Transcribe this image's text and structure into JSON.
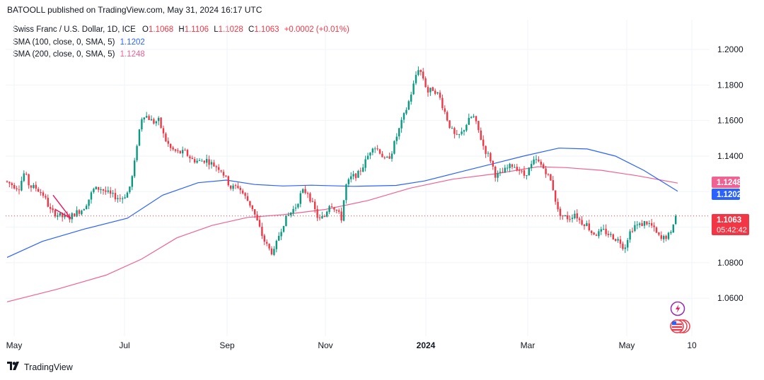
{
  "publisher": "BATOOLL published on TradingView.com, May 31, 2024 16:17 UTC",
  "legend": {
    "symbol": "Swiss Franc / U.S. Dollar, 1D, ICE",
    "o_label": "O",
    "o": "1.1068",
    "h_label": "H",
    "h": "1.1106",
    "l_label": "L",
    "l": "1.1028",
    "c_label": "C",
    "c": "1.1063",
    "change": "+0.0002 (+0.01%)",
    "sma100_label": "SMA (100, close, 0, SMA, 5)",
    "sma100_value": "1.1202",
    "sma200_label": "SMA (200, close, 0, SMA, 5)",
    "sma200_value": "1.1248"
  },
  "badges": {
    "sma200": "1.1248",
    "sma100": "1.1202",
    "price": "1.1063",
    "countdown": "05:42:42"
  },
  "footer": {
    "brand": "TradingView"
  },
  "colors": {
    "up": "#089981",
    "down": "#f23645",
    "sma100": "#2962ff",
    "sma200": "#f06292",
    "price_badge": "#f23645",
    "grid": "#f0f3fa",
    "pattern": "#e91e63"
  },
  "chart_data": {
    "type": "candlestick",
    "ylim": [
      1.043,
      1.204
    ],
    "y_ticks": [
      1.06,
      1.08,
      1.14,
      1.16,
      1.18,
      1.2
    ],
    "y_tick_labels": [
      "1.0600",
      "1.0800",
      "1.1400",
      "1.1600",
      "1.1800",
      "1.2000"
    ],
    "x_ticks": [
      {
        "label": "May",
        "bold": false
      },
      {
        "label": "Jul",
        "bold": false
      },
      {
        "label": "Sep",
        "bold": false
      },
      {
        "label": "Nov",
        "bold": false
      },
      {
        "label": "2024",
        "bold": true
      },
      {
        "label": "Mar",
        "bold": false
      },
      {
        "label": "May",
        "bold": false
      },
      {
        "label": "10",
        "bold": false
      }
    ],
    "x_tick_days": [
      20,
      176,
      321,
      460,
      602,
      746,
      886,
      978
    ],
    "price_anchors": [
      [
        10,
        1.126
      ],
      [
        20,
        1.124
      ],
      [
        30,
        1.122
      ],
      [
        38,
        1.131
      ],
      [
        45,
        1.123
      ],
      [
        55,
        1.122
      ],
      [
        65,
        1.118
      ],
      [
        75,
        1.109
      ],
      [
        90,
        1.106
      ],
      [
        100,
        1.105
      ],
      [
        110,
        1.108
      ],
      [
        120,
        1.11
      ],
      [
        128,
        1.115
      ],
      [
        135,
        1.121
      ],
      [
        145,
        1.122
      ],
      [
        160,
        1.118
      ],
      [
        175,
        1.116
      ],
      [
        185,
        1.12
      ],
      [
        192,
        1.131
      ],
      [
        198,
        1.15
      ],
      [
        205,
        1.164
      ],
      [
        212,
        1.162
      ],
      [
        220,
        1.159
      ],
      [
        228,
        1.16
      ],
      [
        236,
        1.15
      ],
      [
        245,
        1.144
      ],
      [
        255,
        1.142
      ],
      [
        265,
        1.142
      ],
      [
        275,
        1.138
      ],
      [
        285,
        1.137
      ],
      [
        295,
        1.138
      ],
      [
        305,
        1.135
      ],
      [
        315,
        1.133
      ],
      [
        322,
        1.128
      ],
      [
        330,
        1.122
      ],
      [
        340,
        1.123
      ],
      [
        350,
        1.117
      ],
      [
        360,
        1.111
      ],
      [
        368,
        1.102
      ],
      [
        376,
        1.093
      ],
      [
        383,
        1.088
      ],
      [
        390,
        1.085
      ],
      [
        398,
        1.096
      ],
      [
        406,
        1.104
      ],
      [
        414,
        1.108
      ],
      [
        422,
        1.112
      ],
      [
        430,
        1.12
      ],
      [
        438,
        1.12
      ],
      [
        446,
        1.112
      ],
      [
        454,
        1.104
      ],
      [
        462,
        1.106
      ],
      [
        470,
        1.114
      ],
      [
        478,
        1.11
      ],
      [
        486,
        1.105
      ],
      [
        492,
        1.123
      ],
      [
        500,
        1.128
      ],
      [
        510,
        1.13
      ],
      [
        520,
        1.137
      ],
      [
        530,
        1.146
      ],
      [
        540,
        1.143
      ],
      [
        548,
        1.137
      ],
      [
        556,
        1.141
      ],
      [
        564,
        1.151
      ],
      [
        572,
        1.16
      ],
      [
        580,
        1.169
      ],
      [
        588,
        1.18
      ],
      [
        594,
        1.19
      ],
      [
        600,
        1.186
      ],
      [
        608,
        1.176
      ],
      [
        616,
        1.178
      ],
      [
        624,
        1.174
      ],
      [
        632,
        1.165
      ],
      [
        640,
        1.156
      ],
      [
        648,
        1.15
      ],
      [
        656,
        1.153
      ],
      [
        664,
        1.159
      ],
      [
        672,
        1.163
      ],
      [
        680,
        1.154
      ],
      [
        688,
        1.144
      ],
      [
        696,
        1.139
      ],
      [
        704,
        1.129
      ],
      [
        712,
        1.13
      ],
      [
        720,
        1.133
      ],
      [
        728,
        1.135
      ],
      [
        736,
        1.133
      ],
      [
        744,
        1.129
      ],
      [
        752,
        1.133
      ],
      [
        760,
        1.138
      ],
      [
        768,
        1.135
      ],
      [
        776,
        1.131
      ],
      [
        784,
        1.124
      ],
      [
        792,
        1.109
      ],
      [
        800,
        1.106
      ],
      [
        808,
        1.105
      ],
      [
        816,
        1.108
      ],
      [
        824,
        1.103
      ],
      [
        832,
        1.102
      ],
      [
        840,
        1.097
      ],
      [
        848,
        1.096
      ],
      [
        856,
        1.098
      ],
      [
        864,
        1.096
      ],
      [
        872,
        1.094
      ],
      [
        880,
        1.092
      ],
      [
        886,
        1.088
      ],
      [
        892,
        1.096
      ],
      [
        900,
        1.101
      ],
      [
        908,
        1.101
      ],
      [
        916,
        1.103
      ],
      [
        924,
        1.101
      ],
      [
        932,
        1.096
      ],
      [
        938,
        1.093
      ],
      [
        946,
        1.095
      ],
      [
        952,
        1.096
      ],
      [
        957,
        1.1063
      ]
    ],
    "sma100_anchors": [
      [
        10,
        1.083
      ],
      [
        60,
        1.092
      ],
      [
        120,
        1.099
      ],
      [
        180,
        1.105
      ],
      [
        230,
        1.118
      ],
      [
        280,
        1.125
      ],
      [
        320,
        1.1265
      ],
      [
        360,
        1.124
      ],
      [
        400,
        1.1232
      ],
      [
        440,
        1.1236
      ],
      [
        500,
        1.123
      ],
      [
        560,
        1.1235
      ],
      [
        600,
        1.126
      ],
      [
        650,
        1.131
      ],
      [
        700,
        1.136
      ],
      [
        740,
        1.14
      ],
      [
        790,
        1.1445
      ],
      [
        830,
        1.144
      ],
      [
        870,
        1.14
      ],
      [
        910,
        1.132
      ],
      [
        958,
        1.1202
      ]
    ],
    "sma200_anchors": [
      [
        10,
        1.058
      ],
      [
        80,
        1.065
      ],
      [
        150,
        1.073
      ],
      [
        200,
        1.082
      ],
      [
        250,
        1.094
      ],
      [
        300,
        1.101
      ],
      [
        350,
        1.1055
      ],
      [
        400,
        1.107
      ],
      [
        460,
        1.11
      ],
      [
        520,
        1.115
      ],
      [
        580,
        1.122
      ],
      [
        640,
        1.127
      ],
      [
        700,
        1.13
      ],
      [
        760,
        1.134
      ],
      [
        800,
        1.1335
      ],
      [
        850,
        1.132
      ],
      [
        900,
        1.129
      ],
      [
        958,
        1.1248
      ]
    ],
    "pattern": [
      [
        75,
        1.118
      ],
      [
        100,
        1.105
      ],
      [
        78,
        1.11
      ]
    ],
    "price_line": 1.1063
  }
}
